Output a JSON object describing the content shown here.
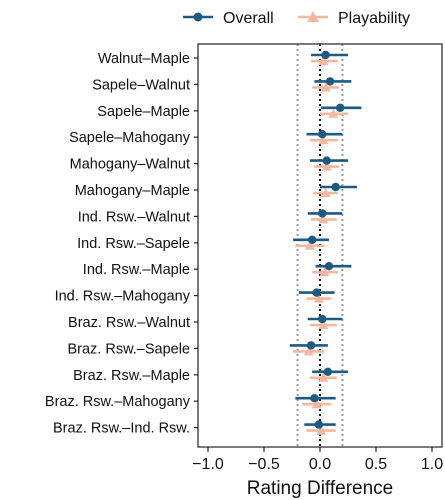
{
  "chart_data": {
    "type": "scatter",
    "title": "",
    "xlabel": "Rating Difference",
    "ylabel": "",
    "xlim": [
      -1.05,
      1.05
    ],
    "x_ticks": [
      -1.0,
      -0.5,
      0.0,
      0.5,
      1.0
    ],
    "x_tick_labels": [
      "−1.0",
      "−0.5",
      "0.0",
      "0.5",
      "1.0"
    ],
    "grid": false,
    "legend_position": "top-right",
    "reference_lines": [
      {
        "x": -0.2,
        "style": "dotted",
        "color": "#9a9a9a"
      },
      {
        "x": 0.0,
        "style": "dotted",
        "color": "#111111"
      },
      {
        "x": 0.2,
        "style": "dotted",
        "color": "#9a9a9a"
      }
    ],
    "categories": [
      "Walnut–Maple",
      "Sapele–Walnut",
      "Sapele–Maple",
      "Sapele–Mahogany",
      "Mahogany–Walnut",
      "Mahogany–Maple",
      "Ind. Rsw.–Walnut",
      "Ind. Rsw.–Sapele",
      "Ind. Rsw.–Maple",
      "Ind. Rsw.–Mahogany",
      "Braz. Rsw.–Walnut",
      "Braz. Rsw.–Sapele",
      "Braz. Rsw.–Maple",
      "Braz. Rsw.–Mahogany",
      "Braz. Rsw.–Ind. Rsw."
    ],
    "series": [
      {
        "name": "Overall",
        "color": "#1d5a80",
        "marker": "circle",
        "estimate": [
          0.05,
          0.09,
          0.18,
          0.02,
          0.06,
          0.14,
          0.02,
          -0.07,
          0.08,
          -0.03,
          0.02,
          -0.08,
          0.07,
          -0.05,
          -0.01
        ],
        "lower": [
          -0.08,
          -0.05,
          0.01,
          -0.12,
          -0.09,
          0.0,
          -0.11,
          -0.24,
          -0.04,
          -0.19,
          -0.11,
          -0.27,
          -0.07,
          -0.22,
          -0.14
        ],
        "upper": [
          0.25,
          0.28,
          0.37,
          0.2,
          0.25,
          0.33,
          0.2,
          0.08,
          0.28,
          0.13,
          0.2,
          0.07,
          0.25,
          0.14,
          0.14
        ]
      },
      {
        "name": "Playability",
        "color": "#f2b8a0",
        "marker": "triangle",
        "estimate": [
          0.03,
          0.05,
          0.12,
          0.03,
          0.06,
          0.05,
          0.03,
          -0.09,
          0.04,
          -0.01,
          0.03,
          -0.1,
          0.03,
          -0.03,
          0.01
        ],
        "lower": [
          -0.08,
          -0.07,
          0.0,
          -0.09,
          -0.05,
          -0.06,
          -0.08,
          -0.22,
          -0.07,
          -0.12,
          -0.09,
          -0.24,
          -0.09,
          -0.16,
          -0.12
        ],
        "upper": [
          0.16,
          0.17,
          0.25,
          0.16,
          0.17,
          0.16,
          0.15,
          0.04,
          0.16,
          0.1,
          0.15,
          0.04,
          0.15,
          0.1,
          0.14
        ]
      }
    ]
  }
}
